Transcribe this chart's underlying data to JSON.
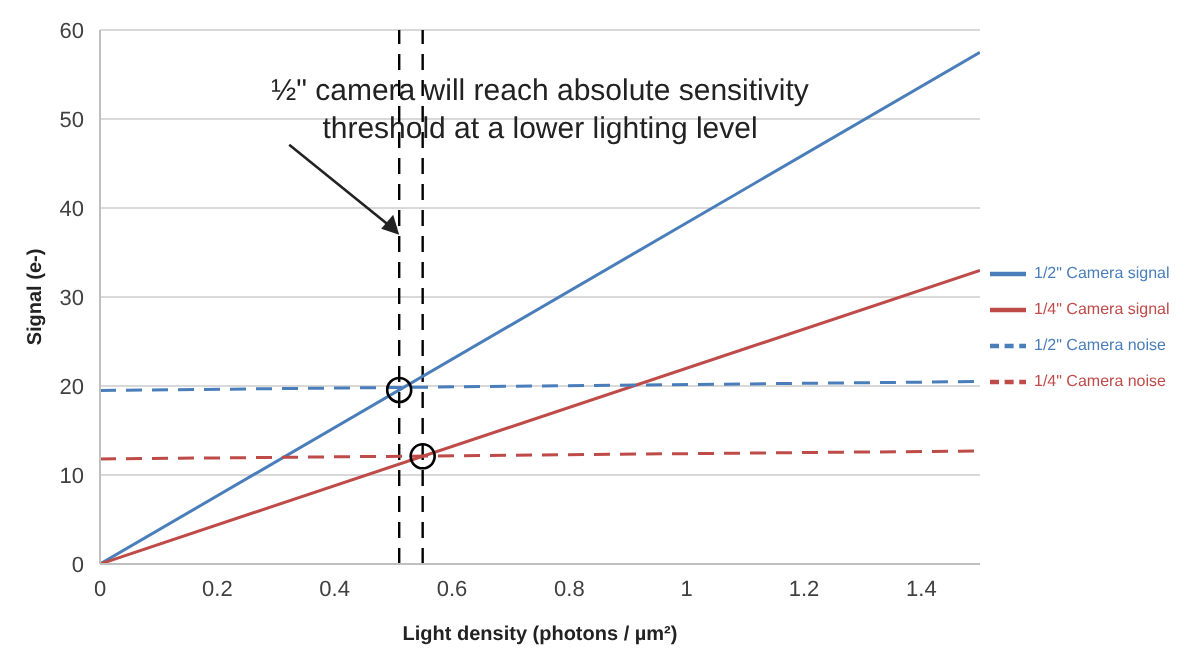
{
  "chart_data": {
    "type": "line",
    "xlabel": "Light density (photons / µm²)",
    "ylabel": "Signal (e-)",
    "xlim": [
      0,
      1.5
    ],
    "xticks": [
      0,
      0.2,
      0.4,
      0.6,
      0.8,
      1,
      1.2,
      1.4
    ],
    "ylim": [
      0,
      60
    ],
    "yticks": [
      0,
      10,
      20,
      30,
      40,
      50,
      60
    ],
    "grid": "y",
    "legend": "right",
    "marker": "none",
    "x": [
      0,
      1.5
    ],
    "series": [
      {
        "name": "1/2\" Camera signal",
        "color": "#4a7ebb",
        "values": [
          0,
          57.5
        ],
        "line_style": "solid"
      },
      {
        "name": "1/4\" Camera signal",
        "color": "#be4b48",
        "values": [
          0,
          33
        ],
        "line_style": "solid"
      },
      {
        "name": "1/2\" Camera noise",
        "color": "#4a7ebb",
        "values": [
          19.5,
          20.5
        ],
        "line_style": "dashed"
      },
      {
        "name": "1/4\" Camera noise",
        "color": "#be4b48",
        "values": [
          11.8,
          12.7
        ],
        "line_style": "dashed"
      }
    ],
    "ref_lines": [
      {
        "axis": "x",
        "value": 0.51,
        "color": "#000000",
        "line_style": "dashed"
      },
      {
        "axis": "x",
        "value": 0.55,
        "color": "#000000",
        "line_style": "dashed"
      }
    ],
    "annotations": [
      {
        "text": "½\" camera will reach absolute sensitivity threshold at a lower lighting level",
        "x": 0.51,
        "y": 37
      }
    ]
  }
}
